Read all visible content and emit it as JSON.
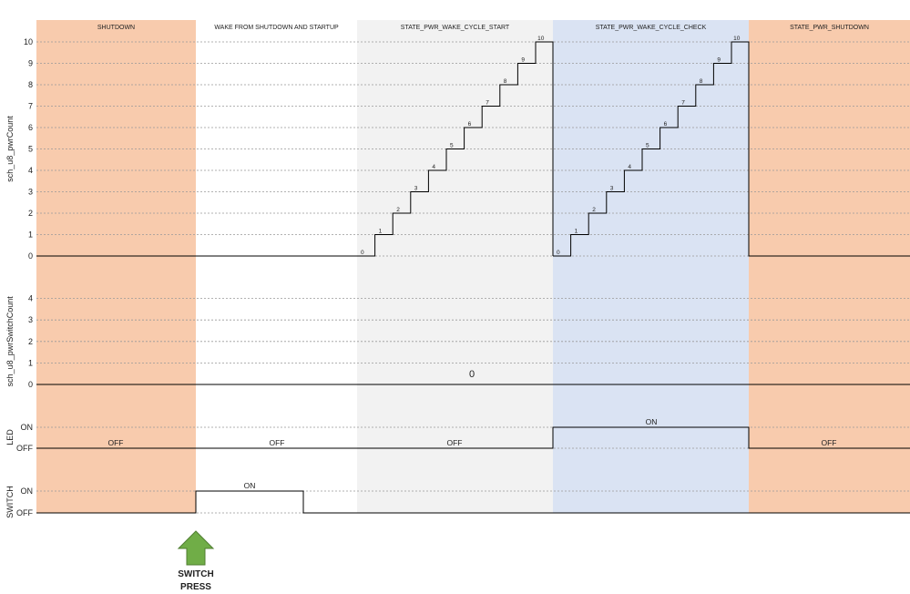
{
  "phases": [
    {
      "label": "SHUTDOWN",
      "color": "#f8cbad"
    },
    {
      "label": "WAKE FROM SHUTDOWN AND STARTUP",
      "color": "#ffffff"
    },
    {
      "label": "STATE_PWR_WAKE_CYCLE_START",
      "color": "#f2f2f2"
    },
    {
      "label": "STATE_PWR_WAKE_CYCLE_CHECK",
      "color": "#dae3f3"
    },
    {
      "label": "STATE_PWR_SHUTDOWN",
      "color": "#f8cbad"
    }
  ],
  "signals": {
    "pwr_count": {
      "axis_label": "sch_u8_pwrCount",
      "ticks": [
        "0",
        "1",
        "2",
        "3",
        "4",
        "5",
        "6",
        "7",
        "8",
        "9",
        "10"
      ],
      "ramp_labels": [
        "0",
        "1",
        "2",
        "3",
        "4",
        "5",
        "6",
        "7",
        "8",
        "9",
        "10"
      ]
    },
    "switch_count": {
      "axis_label": "sch_u8_pwrSwitchCount",
      "ticks": [
        "0",
        "1",
        "2",
        "3",
        "4"
      ],
      "value_label": "0"
    },
    "led": {
      "axis_label": "LED",
      "ticks": [
        "OFF",
        "ON"
      ],
      "state_labels": [
        "OFF",
        "OFF",
        "OFF",
        "ON",
        "OFF"
      ]
    },
    "switch": {
      "axis_label": "SWITCH",
      "ticks": [
        "OFF",
        "ON"
      ],
      "on_label": "ON"
    }
  },
  "annotation": {
    "line1": "SWITCH",
    "line2": "PRESS",
    "arrow_color": "#70ad47"
  },
  "line_color": "#000000",
  "grid_color": "#999999"
}
